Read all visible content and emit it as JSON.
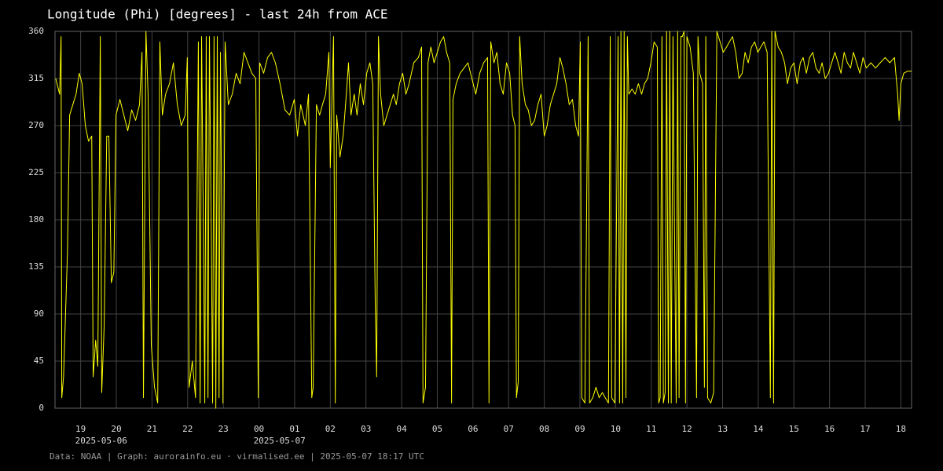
{
  "chart_data": {
    "type": "line",
    "title": "Longitude (Phi) [degrees] - last 24h from ACE",
    "footer": "Data: NOAA | Graph: aurorainfo.eu · virmalised.ee | 2025-05-07 18:17 UTC",
    "grid": true,
    "xlim": [
      18.28,
      42.3
    ],
    "ylim": [
      0,
      360
    ],
    "yticks": [
      0,
      45,
      90,
      135,
      180,
      225,
      270,
      315,
      360
    ],
    "xticks": [
      19,
      20,
      21,
      22,
      23,
      {
        "value": 24,
        "label": "00"
      },
      {
        "value": 25,
        "label": "01"
      },
      {
        "value": 26,
        "label": "02"
      },
      {
        "value": 27,
        "label": "03"
      },
      {
        "value": 28,
        "label": "04"
      },
      {
        "value": 29,
        "label": "05"
      },
      {
        "value": 30,
        "label": "06"
      },
      {
        "value": 31,
        "label": "07"
      },
      {
        "value": 32,
        "label": "08"
      },
      {
        "value": 33,
        "label": "09"
      },
      {
        "value": 34,
        "label": "10"
      },
      {
        "value": 35,
        "label": "11"
      },
      {
        "value": 36,
        "label": "12"
      },
      {
        "value": 37,
        "label": "13"
      },
      {
        "value": 38,
        "label": "14"
      },
      {
        "value": 39,
        "label": "15"
      },
      {
        "value": 40,
        "label": "16"
      },
      {
        "value": 41,
        "label": "17"
      },
      {
        "value": 42,
        "label": "18"
      }
    ],
    "date_labels": [
      {
        "value": 19,
        "label": "2025-05-06"
      },
      {
        "value": 24,
        "label": "2025-05-07"
      }
    ],
    "x": [
      18.3,
      18.41,
      18.45,
      18.47,
      18.52,
      18.63,
      18.69,
      18.78,
      18.87,
      18.96,
      19.04,
      19.13,
      19.22,
      19.31,
      19.35,
      19.42,
      19.48,
      19.55,
      19.59,
      19.66,
      19.73,
      19.79,
      19.86,
      19.93,
      19.99,
      20.1,
      20.21,
      20.32,
      20.43,
      20.54,
      20.65,
      20.72,
      20.76,
      20.83,
      20.89,
      20.98,
      21.07,
      21.16,
      21.22,
      21.29,
      21.38,
      21.49,
      21.6,
      21.71,
      21.82,
      21.93,
      21.99,
      22.04,
      22.13,
      22.22,
      22.3,
      22.35,
      22.39,
      22.44,
      22.48,
      22.52,
      22.57,
      22.61,
      22.66,
      22.7,
      22.74,
      22.79,
      22.83,
      22.88,
      22.92,
      22.99,
      23.05,
      23.14,
      23.25,
      23.36,
      23.47,
      23.58,
      23.69,
      23.8,
      23.91,
      23.98,
      24.02,
      24.13,
      24.24,
      24.35,
      24.46,
      24.59,
      24.73,
      24.86,
      24.99,
      25.08,
      25.17,
      25.3,
      25.39,
      25.48,
      25.52,
      25.61,
      25.7,
      25.78,
      25.87,
      25.96,
      26.0,
      26.09,
      26.14,
      26.18,
      26.27,
      26.36,
      26.45,
      26.51,
      26.58,
      26.67,
      26.75,
      26.84,
      26.93,
      27.02,
      27.11,
      27.19,
      27.26,
      27.3,
      27.35,
      27.41,
      27.5,
      27.59,
      27.68,
      27.77,
      27.85,
      27.94,
      28.03,
      28.12,
      28.21,
      28.34,
      28.47,
      28.56,
      28.6,
      28.67,
      28.74,
      28.82,
      28.91,
      29.0,
      29.09,
      29.18,
      29.26,
      29.35,
      29.4,
      29.44,
      29.53,
      29.64,
      29.75,
      29.86,
      29.97,
      30.08,
      30.19,
      30.3,
      30.41,
      30.45,
      30.5,
      30.59,
      30.67,
      30.76,
      30.85,
      30.94,
      31.03,
      31.11,
      31.18,
      31.22,
      31.27,
      31.31,
      31.38,
      31.47,
      31.55,
      31.64,
      31.73,
      31.82,
      31.91,
      32.0,
      32.08,
      32.17,
      32.26,
      32.35,
      32.44,
      32.52,
      32.61,
      32.7,
      32.79,
      32.88,
      32.96,
      33.01,
      33.05,
      33.14,
      33.23,
      33.27,
      33.36,
      33.45,
      33.54,
      33.63,
      33.71,
      33.8,
      33.85,
      33.89,
      33.98,
      34.07,
      34.11,
      34.15,
      34.2,
      34.24,
      34.29,
      34.33,
      34.37,
      34.46,
      34.55,
      34.64,
      34.73,
      34.81,
      34.9,
      34.99,
      35.08,
      35.17,
      35.21,
      35.25,
      35.3,
      35.34,
      35.39,
      35.43,
      35.48,
      35.52,
      35.56,
      35.61,
      35.65,
      35.7,
      35.74,
      35.78,
      35.83,
      35.87,
      35.92,
      35.96,
      36.0,
      36.09,
      36.18,
      36.27,
      36.31,
      36.36,
      36.44,
      36.49,
      36.53,
      36.58,
      36.67,
      36.75,
      36.84,
      36.93,
      37.02,
      37.11,
      37.19,
      37.28,
      37.37,
      37.46,
      37.55,
      37.63,
      37.72,
      37.81,
      37.9,
      37.99,
      38.07,
      38.16,
      38.25,
      38.34,
      38.38,
      38.43,
      38.47,
      38.56,
      38.65,
      38.74,
      38.82,
      38.91,
      39.0,
      39.09,
      39.18,
      39.26,
      39.35,
      39.44,
      39.53,
      39.62,
      39.71,
      39.79,
      39.88,
      39.97,
      40.06,
      40.15,
      40.24,
      40.32,
      40.41,
      40.5,
      40.59,
      40.67,
      40.76,
      40.85,
      40.94,
      41.03,
      41.16,
      41.29,
      41.42,
      41.56,
      41.69,
      41.82,
      41.91,
      41.95,
      42.0,
      42.08,
      42.19,
      42.3
    ],
    "series": [
      {
        "color": "#ffff00",
        "values": [
          315,
          300,
          355,
          10,
          30,
          150,
          280,
          290,
          300,
          320,
          310,
          270,
          255,
          260,
          30,
          65,
          40,
          355,
          15,
          80,
          260,
          260,
          120,
          130,
          280,
          295,
          280,
          265,
          285,
          275,
          290,
          340,
          10,
          360,
          300,
          60,
          20,
          5,
          350,
          280,
          300,
          310,
          330,
          290,
          270,
          280,
          335,
          20,
          45,
          10,
          350,
          5,
          355,
          175,
          5,
          355,
          10,
          355,
          175,
          5,
          355,
          0,
          355,
          10,
          340,
          5,
          350,
          290,
          300,
          320,
          310,
          340,
          330,
          320,
          315,
          10,
          330,
          320,
          335,
          340,
          330,
          310,
          285,
          280,
          295,
          260,
          290,
          270,
          300,
          10,
          20,
          290,
          280,
          290,
          300,
          340,
          230,
          355,
          5,
          280,
          240,
          260,
          300,
          330,
          280,
          300,
          280,
          310,
          290,
          320,
          330,
          310,
          100,
          30,
          355,
          300,
          270,
          280,
          290,
          300,
          290,
          310,
          320,
          300,
          310,
          330,
          335,
          345,
          5,
          20,
          330,
          345,
          330,
          340,
          350,
          355,
          340,
          330,
          5,
          295,
          310,
          320,
          325,
          330,
          315,
          300,
          320,
          330,
          335,
          5,
          350,
          330,
          340,
          310,
          300,
          330,
          320,
          280,
          270,
          10,
          25,
          355,
          310,
          290,
          285,
          270,
          275,
          290,
          300,
          260,
          270,
          290,
          300,
          310,
          335,
          325,
          310,
          290,
          295,
          270,
          260,
          350,
          10,
          5,
          355,
          5,
          10,
          20,
          10,
          15,
          10,
          5,
          355,
          10,
          5,
          355,
          5,
          360,
          5,
          360,
          10,
          355,
          300,
          305,
          300,
          310,
          300,
          310,
          315,
          330,
          350,
          345,
          5,
          10,
          355,
          5,
          15,
          360,
          5,
          360,
          5,
          355,
          175,
          5,
          360,
          10,
          355,
          355,
          360,
          5,
          355,
          345,
          320,
          10,
          355,
          320,
          310,
          20,
          355,
          10,
          5,
          15,
          360,
          350,
          340,
          345,
          350,
          355,
          340,
          315,
          320,
          340,
          330,
          345,
          350,
          340,
          345,
          350,
          340,
          10,
          360,
          5,
          360,
          345,
          340,
          330,
          310,
          325,
          330,
          310,
          330,
          335,
          320,
          335,
          340,
          325,
          320,
          330,
          315,
          320,
          330,
          340,
          330,
          320,
          340,
          330,
          325,
          340,
          330,
          320,
          335,
          325,
          330,
          325,
          330,
          335,
          330,
          335,
          300,
          275,
          310,
          320,
          322,
          322
        ]
      }
    ]
  }
}
